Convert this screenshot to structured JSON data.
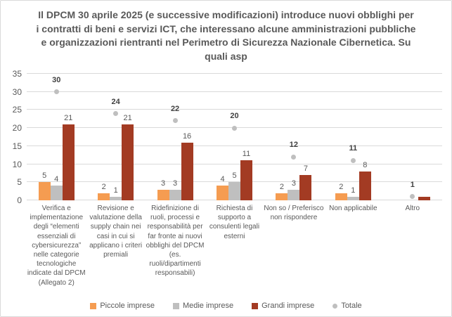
{
  "title": "Il DPCM 30 aprile 2025 (e successive modificazioni) introduce nuovi obblighi per i contratti di beni e servizi ICT, che interessano alcune amministrazioni pubbliche e organizzazioni rientranti nel Perimetro di Sicurezza Nazionale Cibernetica. Su quali asp",
  "colors": {
    "piccole": "#F59C51",
    "medie": "#BFBFBF",
    "grandi": "#A33B23",
    "totale_dot": "#BFBFBF",
    "gridline": "#D9D9D9",
    "text_gray": "#595959",
    "total_label": "#404040",
    "frame_border": "#D9D9D9"
  },
  "chart_data": {
    "type": "bar",
    "title": "Il DPCM 30 aprile 2025 (e successive modificazioni) introduce nuovi obblighi per i contratti di beni e servizi ICT, che interessano alcune amministrazioni pubbliche e organizzazioni rientranti nel Perimetro di Sicurezza Nazionale Cibernetica. Su quali asp",
    "categories": [
      "Verifica e implementazione degli “elementi essenziali di cybersicurezza” nelle categorie tecnologiche indicate dal DPCM (Allegato 2)",
      "Revisione e valutazione della supply chain nei casi in cui si applicano i criteri premiali",
      "Ridefinizione di ruoli, processi e responsabilità per far fronte ai nuovi obblighi del DPCM (es. ruoli/dipartimenti responsabili)",
      "Richiesta di supporto a consulenti legali esterni",
      "Non so / Preferisco non rispondere",
      "Non applicabile",
      "Altro"
    ],
    "series": [
      {
        "name": "Piccole imprese",
        "render": "bar",
        "marker": "square",
        "color": "#F59C51",
        "values": [
          5,
          2,
          3,
          4,
          2,
          2,
          0
        ]
      },
      {
        "name": "Medie imprese",
        "render": "bar",
        "marker": "square",
        "color": "#BFBFBF",
        "values": [
          4,
          1,
          3,
          5,
          3,
          1,
          0
        ]
      },
      {
        "name": "Grandi imprese",
        "render": "bar",
        "marker": "square",
        "color": "#A33B23",
        "values": [
          21,
          21,
          16,
          11,
          7,
          8,
          1
        ]
      },
      {
        "name": "Totale",
        "render": "point",
        "marker": "circle",
        "color": "#BFBFBF",
        "values": [
          30,
          24,
          22,
          20,
          12,
          11,
          1
        ]
      }
    ],
    "hidden_bar_labels": [
      {
        "series": "Grandi imprese",
        "category_index": 6
      }
    ],
    "ylim": [
      0,
      35
    ],
    "yticks": [
      0,
      5,
      10,
      15,
      20,
      25,
      30,
      35
    ],
    "xlabel": "",
    "ylabel": "",
    "grid": true,
    "legend_position": "bottom"
  }
}
